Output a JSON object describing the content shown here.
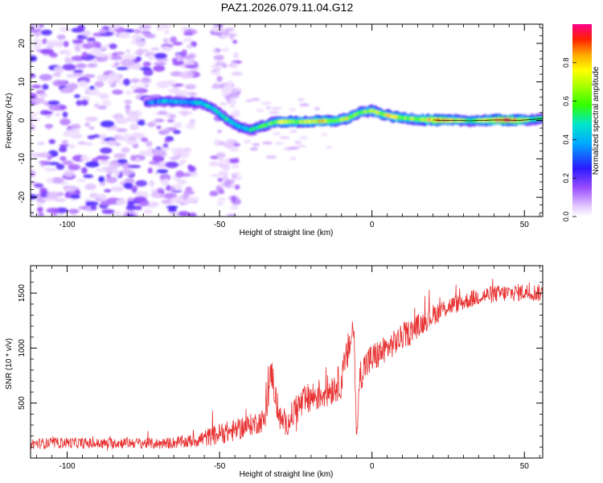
{
  "title": "PAZ1.2026.079.11.04.G12",
  "chart_data": [
    {
      "type": "heatmap",
      "xlabel": "Height of straight line (km)",
      "ylabel": "Frequency (Hz)",
      "xlim": [
        -112,
        56
      ],
      "ylim": [
        -25,
        25
      ],
      "x_ticks": [
        -100,
        -50,
        0,
        50
      ],
      "y_ticks": [
        20,
        10,
        0,
        -10,
        -20
      ],
      "colorbar": {
        "label": "Normalized spectral amplitude",
        "range": [
          0.0,
          1.0
        ],
        "ticks": [
          0.0,
          0.2,
          0.4,
          0.6,
          0.8
        ]
      },
      "ridge": {
        "x": [
          -74,
          -68,
          -62,
          -56,
          -52,
          -48,
          -44,
          -40,
          -36,
          -32,
          -28,
          -24,
          -20,
          -16,
          -12,
          -8,
          -4,
          0,
          4,
          8,
          12,
          16,
          20,
          24,
          28,
          32,
          36,
          40,
          44,
          48,
          52,
          56
        ],
        "y": [
          4.5,
          5.0,
          4.8,
          4.5,
          3.0,
          0.5,
          -1.5,
          -2.5,
          -1.5,
          -0.5,
          -0.3,
          -0.4,
          -0.3,
          -0.2,
          -0.1,
          0.5,
          2.0,
          2.5,
          1.5,
          0.8,
          0.5,
          0.2,
          0.1,
          0.0,
          0.0,
          -0.1,
          0.0,
          0.1,
          0.1,
          0.0,
          0.2,
          0.5
        ],
        "amplitude": [
          0.3,
          0.45,
          0.4,
          0.5,
          0.45,
          0.55,
          0.45,
          0.5,
          0.6,
          0.65,
          0.8,
          0.7,
          0.75,
          0.85,
          0.7,
          0.75,
          0.65,
          0.7,
          0.75,
          0.8,
          0.7,
          0.75,
          0.95,
          0.9,
          0.7,
          0.6,
          0.7,
          0.9,
          0.95,
          0.9,
          0.6,
          0.5
        ]
      }
    },
    {
      "type": "line",
      "xlabel": "Height of straight line (km)",
      "ylabel": "SNR (10 * v/v)",
      "xlim": [
        -112,
        56
      ],
      "ylim": [
        0,
        1750
      ],
      "x_ticks": [
        -100,
        -50,
        0,
        50
      ],
      "y_ticks": [
        500,
        1000,
        1500
      ],
      "series": [
        {
          "name": "SNR",
          "color": "#e83030",
          "x": [
            -112,
            -100,
            -90,
            -80,
            -70,
            -60,
            -55,
            -50,
            -45,
            -40,
            -35,
            -33,
            -31,
            -30,
            -28,
            -25,
            -20,
            -15,
            -10,
            -6,
            -5,
            -4,
            -2,
            0,
            5,
            10,
            15,
            20,
            25,
            30,
            35,
            40,
            45,
            50,
            56
          ],
          "y": [
            130,
            140,
            130,
            140,
            130,
            150,
            180,
            220,
            250,
            300,
            350,
            800,
            450,
            350,
            300,
            450,
            550,
            600,
            700,
            1200,
            150,
            750,
            850,
            900,
            1000,
            1100,
            1200,
            1300,
            1380,
            1420,
            1470,
            1490,
            1500,
            1510,
            1500
          ],
          "noise_amplitude": [
            50,
            50,
            50,
            50,
            50,
            60,
            80,
            100,
            100,
            100,
            110,
            150,
            150,
            120,
            100,
            150,
            150,
            150,
            160,
            180,
            50,
            150,
            150,
            150,
            120,
            120,
            110,
            100,
            90,
            80,
            80,
            80,
            80,
            80,
            80
          ]
        }
      ]
    }
  ]
}
